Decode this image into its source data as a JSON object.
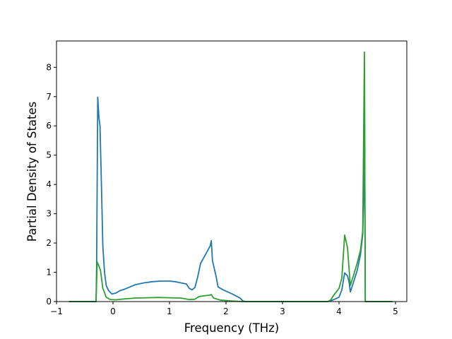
{
  "chart_data": {
    "type": "line",
    "title": "",
    "xlabel": "Frequency (THz)",
    "ylabel": "Partial Density of States",
    "xlim": [
      -1.0,
      5.2
    ],
    "ylim": [
      0,
      8.9
    ],
    "xticks": [
      -1,
      0,
      1,
      2,
      3,
      4,
      5
    ],
    "xtick_labels": [
      "−1",
      "0",
      "1",
      "2",
      "3",
      "4",
      "5"
    ],
    "yticks": [
      0,
      1,
      2,
      3,
      4,
      5,
      6,
      7,
      8
    ],
    "ytick_labels": [
      "0",
      "1",
      "2",
      "3",
      "4",
      "5",
      "6",
      "7",
      "8"
    ],
    "grid": false,
    "legend": "none",
    "series": [
      {
        "color": "#1f77b4",
        "points": [
          [
            -0.78,
            0.0
          ],
          [
            -0.3,
            0.0
          ],
          [
            -0.29,
            1.2
          ],
          [
            -0.27,
            6.98
          ],
          [
            -0.25,
            6.3
          ],
          [
            -0.23,
            6.0
          ],
          [
            -0.2,
            3.6
          ],
          [
            -0.18,
            1.9
          ],
          [
            -0.15,
            1.0
          ],
          [
            -0.12,
            0.55
          ],
          [
            -0.08,
            0.38
          ],
          [
            -0.02,
            0.26
          ],
          [
            0.05,
            0.29
          ],
          [
            0.12,
            0.37
          ],
          [
            0.2,
            0.42
          ],
          [
            0.3,
            0.5
          ],
          [
            0.4,
            0.58
          ],
          [
            0.55,
            0.64
          ],
          [
            0.7,
            0.68
          ],
          [
            0.85,
            0.7
          ],
          [
            1.0,
            0.7
          ],
          [
            1.1,
            0.68
          ],
          [
            1.2,
            0.64
          ],
          [
            1.3,
            0.6
          ],
          [
            1.35,
            0.45
          ],
          [
            1.4,
            0.4
          ],
          [
            1.45,
            0.48
          ],
          [
            1.5,
            0.85
          ],
          [
            1.55,
            1.3
          ],
          [
            1.65,
            1.65
          ],
          [
            1.72,
            1.9
          ],
          [
            1.74,
            2.08
          ],
          [
            1.76,
            1.4
          ],
          [
            1.82,
            0.9
          ],
          [
            1.86,
            0.5
          ],
          [
            1.95,
            0.4
          ],
          [
            2.1,
            0.27
          ],
          [
            2.25,
            0.12
          ],
          [
            2.3,
            0.02
          ],
          [
            2.35,
            0.0
          ],
          [
            3.8,
            0.0
          ],
          [
            3.9,
            0.06
          ],
          [
            4.0,
            0.15
          ],
          [
            4.05,
            0.4
          ],
          [
            4.1,
            0.98
          ],
          [
            4.15,
            0.88
          ],
          [
            4.18,
            0.65
          ],
          [
            4.2,
            0.33
          ],
          [
            4.25,
            0.62
          ],
          [
            4.32,
            1.05
          ],
          [
            4.38,
            1.6
          ],
          [
            4.42,
            2.3
          ],
          [
            4.44,
            3.8
          ],
          [
            4.45,
            8.0
          ],
          [
            4.465,
            0.0
          ],
          [
            4.95,
            0.0
          ]
        ]
      },
      {
        "color": "#2ca02c",
        "points": [
          [
            -0.78,
            0.0
          ],
          [
            -0.3,
            0.0
          ],
          [
            -0.28,
            1.35
          ],
          [
            -0.25,
            1.22
          ],
          [
            -0.22,
            1.05
          ],
          [
            -0.18,
            0.45
          ],
          [
            -0.12,
            0.15
          ],
          [
            -0.05,
            0.07
          ],
          [
            0.05,
            0.06
          ],
          [
            0.2,
            0.09
          ],
          [
            0.4,
            0.12
          ],
          [
            0.6,
            0.13
          ],
          [
            0.8,
            0.14
          ],
          [
            1.0,
            0.13
          ],
          [
            1.2,
            0.12
          ],
          [
            1.35,
            0.07
          ],
          [
            1.45,
            0.08
          ],
          [
            1.52,
            0.17
          ],
          [
            1.62,
            0.2
          ],
          [
            1.72,
            0.22
          ],
          [
            1.74,
            0.24
          ],
          [
            1.78,
            0.12
          ],
          [
            1.9,
            0.05
          ],
          [
            2.1,
            0.02
          ],
          [
            2.3,
            0.0
          ],
          [
            3.8,
            0.0
          ],
          [
            3.85,
            0.05
          ],
          [
            3.9,
            0.2
          ],
          [
            4.0,
            0.45
          ],
          [
            4.05,
            0.8
          ],
          [
            4.1,
            2.27
          ],
          [
            4.15,
            1.85
          ],
          [
            4.2,
            0.55
          ],
          [
            4.25,
            0.85
          ],
          [
            4.32,
            1.3
          ],
          [
            4.38,
            1.75
          ],
          [
            4.42,
            2.4
          ],
          [
            4.45,
            8.52
          ],
          [
            4.465,
            0.0
          ],
          [
            4.95,
            0.0
          ]
        ]
      }
    ]
  }
}
